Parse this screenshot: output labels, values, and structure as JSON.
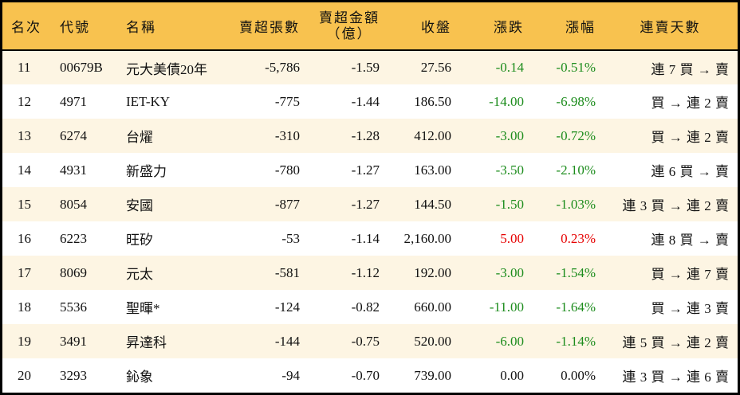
{
  "colors": {
    "header_bg": "#f8c24f",
    "odd_row_bg": "#fdf5e3",
    "down": "#1c8c1c",
    "up": "#e60000"
  },
  "headers": {
    "rank": "名次",
    "code": "代號",
    "name": "名稱",
    "net_sell_lots": "賣超張數",
    "net_sell_amount": "賣超金額",
    "net_sell_amount_unit": "（億）",
    "close": "收盤",
    "change": "漲跌",
    "change_pct": "漲幅",
    "streak": "連賣天數"
  },
  "rows": [
    {
      "rank": "11",
      "code": "00679B",
      "name": "元大美債20年",
      "lots": "-5,786",
      "amount": "-1.59",
      "close": "27.56",
      "change": "-0.14",
      "pct": "-0.51%",
      "trend": "down",
      "streak": "連 7 買 → 賣"
    },
    {
      "rank": "12",
      "code": "4971",
      "name": "IET-KY",
      "lots": "-775",
      "amount": "-1.44",
      "close": "186.50",
      "change": "-14.00",
      "pct": "-6.98%",
      "trend": "down",
      "streak": "買 → 連 2 賣"
    },
    {
      "rank": "13",
      "code": "6274",
      "name": "台燿",
      "lots": "-310",
      "amount": "-1.28",
      "close": "412.00",
      "change": "-3.00",
      "pct": "-0.72%",
      "trend": "down",
      "streak": "買 → 連 2 賣"
    },
    {
      "rank": "14",
      "code": "4931",
      "name": "新盛力",
      "lots": "-780",
      "amount": "-1.27",
      "close": "163.00",
      "change": "-3.50",
      "pct": "-2.10%",
      "trend": "down",
      "streak": "連 6 買 → 賣"
    },
    {
      "rank": "15",
      "code": "8054",
      "name": "安國",
      "lots": "-877",
      "amount": "-1.27",
      "close": "144.50",
      "change": "-1.50",
      "pct": "-1.03%",
      "trend": "down",
      "streak": "連 3 買 → 連 2 賣"
    },
    {
      "rank": "16",
      "code": "6223",
      "name": "旺矽",
      "lots": "-53",
      "amount": "-1.14",
      "close": "2,160.00",
      "change": "5.00",
      "pct": "0.23%",
      "trend": "up",
      "streak": "連 8 買 → 賣"
    },
    {
      "rank": "17",
      "code": "8069",
      "name": "元太",
      "lots": "-581",
      "amount": "-1.12",
      "close": "192.00",
      "change": "-3.00",
      "pct": "-1.54%",
      "trend": "down",
      "streak": "買 → 連 7 賣"
    },
    {
      "rank": "18",
      "code": "5536",
      "name": "聖暉*",
      "lots": "-124",
      "amount": "-0.82",
      "close": "660.00",
      "change": "-11.00",
      "pct": "-1.64%",
      "trend": "down",
      "streak": "買 → 連 3 賣"
    },
    {
      "rank": "19",
      "code": "3491",
      "name": "昇達科",
      "lots": "-144",
      "amount": "-0.75",
      "close": "520.00",
      "change": "-6.00",
      "pct": "-1.14%",
      "trend": "down",
      "streak": "連 5 買 → 連 2 賣"
    },
    {
      "rank": "20",
      "code": "3293",
      "name": "鈊象",
      "lots": "-94",
      "amount": "-0.70",
      "close": "739.00",
      "change": "0.00",
      "pct": "0.00%",
      "trend": "flat",
      "streak": "連 3 買 → 連 6 賣"
    }
  ]
}
